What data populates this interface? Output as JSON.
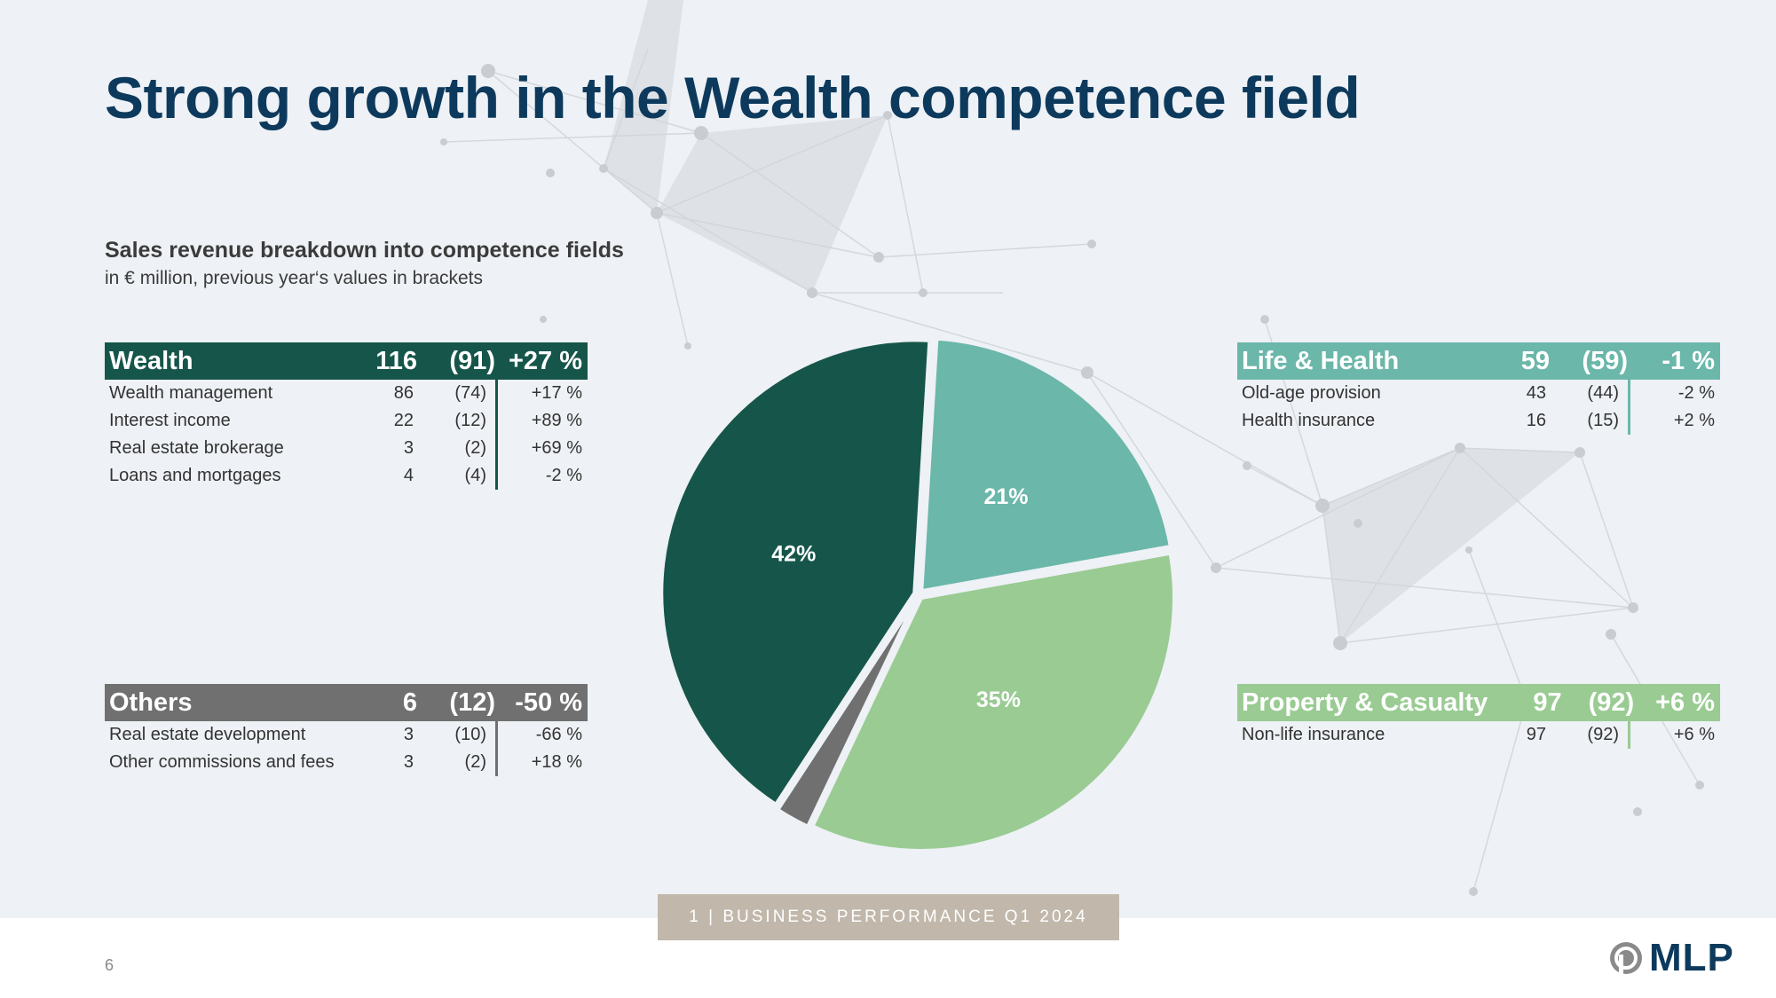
{
  "title": "Strong growth in the Wealth competence field",
  "subtitle": "Sales revenue breakdown into competence fields",
  "subnote": "in € million, previous year‘s values in brackets",
  "colors": {
    "wealth": "#16564a",
    "life_health": "#6bb7aa",
    "property_casualty": "#99cb93",
    "others": "#707070",
    "title": "#0d3a5c",
    "footer_tag": "#c1b8ab"
  },
  "fields": {
    "wealth": {
      "name": "Wealth",
      "value": "116",
      "prev": "(91)",
      "growth": "+27 %",
      "rows": [
        {
          "name": "Wealth management",
          "value": "86",
          "prev": "(74)",
          "growth": "+17 %"
        },
        {
          "name": "Interest income",
          "value": "22",
          "prev": "(12)",
          "growth": "+89 %"
        },
        {
          "name": "Real estate brokerage",
          "value": "3",
          "prev": "(2)",
          "growth": "+69 %"
        },
        {
          "name": "Loans and mortgages",
          "value": "4",
          "prev": "(4)",
          "growth": "-2 %"
        }
      ]
    },
    "others": {
      "name": "Others",
      "value": "6",
      "prev": "(12)",
      "growth": "-50 %",
      "rows": [
        {
          "name": "Real estate development",
          "value": "3",
          "prev": "(10)",
          "growth": "-66 %"
        },
        {
          "name": "Other commissions and fees",
          "value": "3",
          "prev": "(2)",
          "growth": "+18 %"
        }
      ]
    },
    "life_health": {
      "name": "Life & Health",
      "value": "59",
      "prev": "(59)",
      "growth": "-1 %",
      "rows": [
        {
          "name": "Old-age provision",
          "value": "43",
          "prev": "(44)",
          "growth": "-2 %"
        },
        {
          "name": "Health insurance",
          "value": "16",
          "prev": "(15)",
          "growth": "+2 %"
        }
      ]
    },
    "property_casualty": {
      "name": "Property & Casualty",
      "value": "97",
      "prev": "(92)",
      "growth": "+6 %",
      "rows": [
        {
          "name": "Non-life insurance",
          "value": "97",
          "prev": "(92)",
          "growth": "+6 %"
        }
      ]
    }
  },
  "chart_data": {
    "type": "pie",
    "categories": [
      "Life & Health",
      "Property & Casualty",
      "Others",
      "Wealth"
    ],
    "values": [
      59,
      97,
      6,
      116
    ],
    "labels": [
      "21%",
      "35%",
      "",
      "42%"
    ],
    "colors": [
      "#6bb7aa",
      "#99cb93",
      "#707070",
      "#16564a"
    ]
  },
  "footer": {
    "slide_tag": "1 | BUSINESS PERFORMANCE Q1 2024",
    "page_number": "6",
    "logo_text": "MLP"
  }
}
